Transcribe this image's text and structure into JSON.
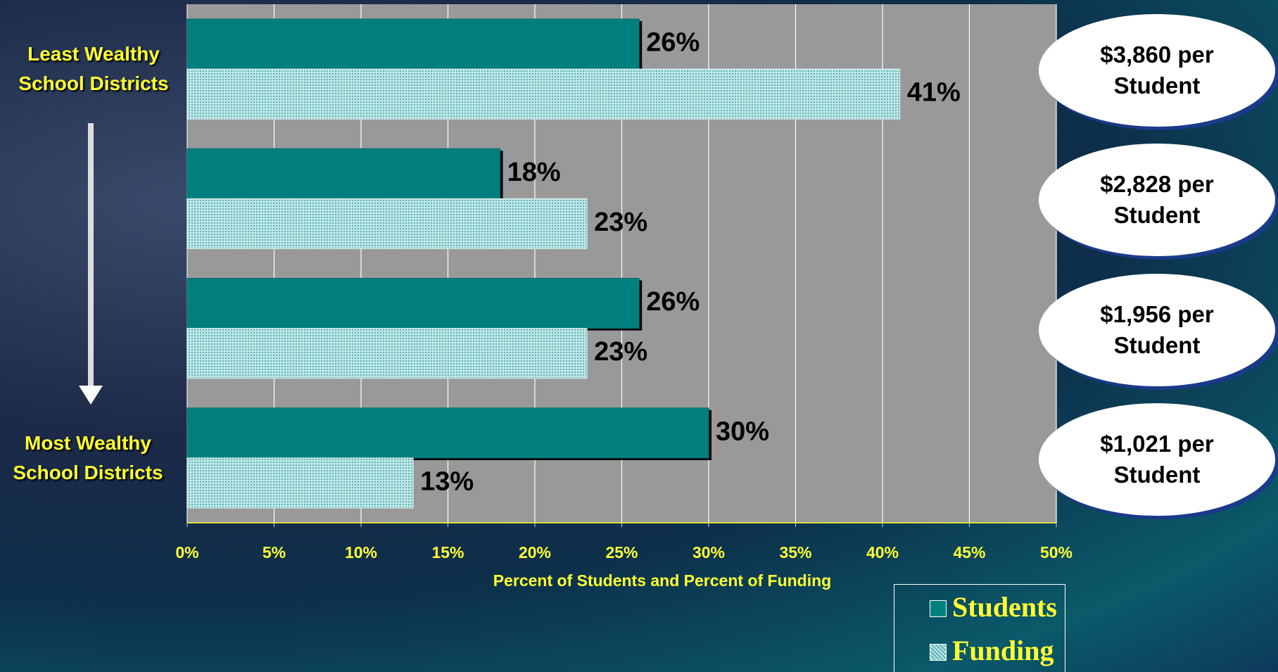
{
  "chart_data": {
    "type": "bar",
    "orientation": "horizontal",
    "categories": [
      "Least Wealthy School Districts",
      null,
      null,
      "Most Wealthy School Districts"
    ],
    "series": [
      {
        "name": "Students",
        "color": "#007f7f",
        "values": [
          26,
          18,
          26,
          30
        ],
        "value_labels": [
          "26%",
          "18%",
          "26%",
          "30%"
        ]
      },
      {
        "name": "Funding",
        "color": "#9fd8d8",
        "values": [
          41,
          23,
          23,
          13
        ],
        "value_labels": [
          "41%",
          "23%",
          "23%",
          "13%"
        ]
      }
    ],
    "annotations": [
      "$3,860 per Student",
      "$2,828 per Student",
      "$1,956 per Student",
      "$1,021 per Student"
    ],
    "xlabel": "Percent of Students and Percent of Funding",
    "xlim": [
      0,
      50
    ],
    "xticks": [
      {
        "value": 0,
        "label": "0%"
      },
      {
        "value": 5,
        "label": "5%"
      },
      {
        "value": 10,
        "label": "10%"
      },
      {
        "value": 15,
        "label": "15%"
      },
      {
        "value": 20,
        "label": "20%"
      },
      {
        "value": 25,
        "label": "25%"
      },
      {
        "value": 30,
        "label": "30%"
      },
      {
        "value": 35,
        "label": "35%"
      },
      {
        "value": 40,
        "label": "40%"
      },
      {
        "value": 45,
        "label": "45%"
      },
      {
        "value": 50,
        "label": "50%"
      }
    ],
    "grid": true
  }
}
